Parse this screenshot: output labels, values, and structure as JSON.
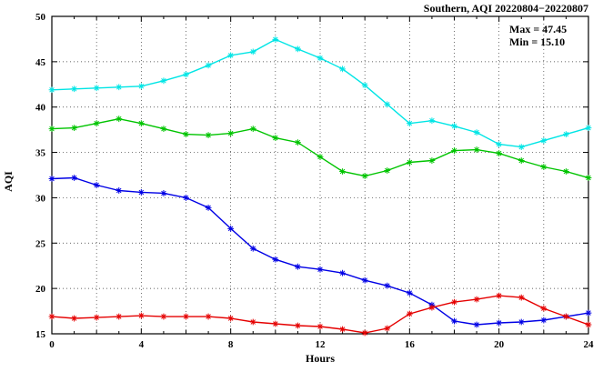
{
  "title": "Southern, AQI 20220804−20220807",
  "annotation": {
    "max": "Max = 47.45",
    "min": "Min = 15.10"
  },
  "axes": {
    "xlabel": "Hours",
    "ylabel": "AQI"
  },
  "chart_data": {
    "type": "line",
    "title": "Southern, AQI 20220804−20220807",
    "xlabel": "Hours",
    "ylabel": "AQI",
    "xlim": [
      0,
      24
    ],
    "ylim": [
      15,
      50
    ],
    "x_major_ticks": [
      0,
      4,
      8,
      12,
      16,
      20,
      24
    ],
    "y_major_ticks": [
      15,
      20,
      25,
      30,
      35,
      40,
      45,
      50
    ],
    "x_grid_step": 2,
    "grid": true,
    "legend_position": "none",
    "annotations": [
      "Max = 47.45",
      "Min = 15.10"
    ],
    "x": [
      0,
      1,
      2,
      3,
      4,
      5,
      6,
      7,
      8,
      9,
      10,
      11,
      12,
      13,
      14,
      15,
      16,
      17,
      18,
      19,
      20,
      21,
      22,
      23,
      24
    ],
    "series": [
      {
        "name": "cyan-series",
        "color": "#00e5e5",
        "values": [
          41.9,
          42.0,
          42.1,
          42.2,
          42.3,
          42.9,
          43.6,
          44.6,
          45.7,
          46.1,
          47.45,
          46.4,
          45.4,
          44.2,
          42.4,
          40.3,
          38.2,
          38.5,
          37.9,
          37.2,
          35.9,
          35.6,
          36.3,
          37.0,
          37.7
        ]
      },
      {
        "name": "green-series",
        "color": "#00c400",
        "values": [
          37.6,
          37.7,
          38.2,
          38.7,
          38.2,
          37.6,
          37.0,
          36.9,
          37.1,
          37.6,
          36.6,
          36.1,
          34.5,
          32.9,
          32.4,
          33.0,
          33.9,
          34.1,
          35.2,
          35.3,
          34.9,
          34.1,
          33.4,
          32.9,
          32.2
        ]
      },
      {
        "name": "blue-series",
        "color": "#0000e5",
        "values": [
          32.1,
          32.2,
          31.4,
          30.8,
          30.6,
          30.5,
          30.0,
          28.9,
          26.6,
          24.4,
          23.2,
          22.4,
          22.1,
          21.7,
          20.9,
          20.3,
          19.5,
          18.2,
          16.4,
          16.0,
          16.2,
          16.3,
          16.5,
          16.9,
          17.3
        ]
      },
      {
        "name": "red-series",
        "color": "#e50000",
        "values": [
          16.9,
          16.7,
          16.8,
          16.9,
          17.0,
          16.9,
          16.9,
          16.9,
          16.7,
          16.3,
          16.1,
          15.9,
          15.8,
          15.5,
          15.1,
          15.6,
          17.2,
          17.9,
          18.5,
          18.8,
          19.2,
          19.0,
          17.8,
          16.9,
          16.0
        ]
      }
    ]
  }
}
